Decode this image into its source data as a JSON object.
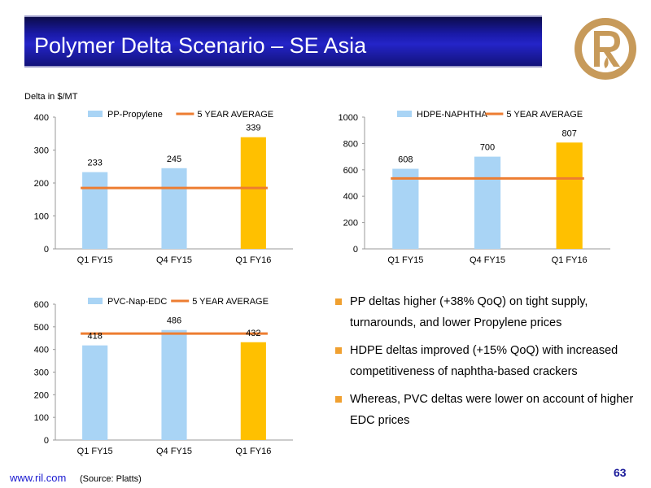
{
  "title": "Polymer Delta Scenario – SE Asia",
  "delta_label": "Delta in $/MT",
  "bullets": [
    "PP deltas higher (+38% QoQ) on tight supply, turnarounds, and lower Propylene prices",
    "HDPE deltas improved (+15% QoQ) with increased competitiveness of naphtha-based crackers",
    "Whereas, PVC deltas were lower on account of higher EDC prices"
  ],
  "footer": {
    "url": "www.ril.com",
    "source": "(Source: Platts)",
    "page": "63"
  },
  "colors": {
    "bar": "#a9d4f5",
    "highlight": "#ffc000",
    "average": "#ed7d31",
    "bullet": "#f0a030"
  },
  "chart_data": [
    {
      "type": "bar",
      "categories": [
        "Q1 FY15",
        "Q4 FY15",
        "Q1 FY16"
      ],
      "series": [
        {
          "name": "PP-Propylene",
          "values": [
            233,
            245,
            339
          ]
        },
        {
          "name": "5 YEAR AVERAGE",
          "type": "line",
          "values": [
            185,
            185,
            185
          ]
        }
      ],
      "highlight_index": 2,
      "ylim": [
        0,
        400
      ],
      "yticks": [
        "0",
        "100",
        "200",
        "300",
        "400"
      ],
      "data_labels": [
        "233",
        "245",
        "339"
      ],
      "legend_position": "top"
    },
    {
      "type": "bar",
      "categories": [
        "Q1 FY15",
        "Q4 FY15",
        "Q1 FY16"
      ],
      "series": [
        {
          "name": "HDPE-NAPHTHA",
          "values": [
            608,
            700,
            807
          ]
        },
        {
          "name": "5 YEAR AVERAGE",
          "type": "line",
          "values": [
            535,
            535,
            535
          ]
        }
      ],
      "highlight_index": 2,
      "ylim": [
        0,
        1000
      ],
      "yticks": [
        "0",
        "200",
        "400",
        "600",
        "800",
        "1000"
      ],
      "data_labels": [
        "608",
        "700",
        "807"
      ],
      "legend_position": "top"
    },
    {
      "type": "bar",
      "categories": [
        "Q1 FY15",
        "Q4 FY15",
        "Q1 FY16"
      ],
      "series": [
        {
          "name": "PVC-Nap-EDC",
          "values": [
            418,
            486,
            432
          ]
        },
        {
          "name": "5 YEAR AVERAGE",
          "type": "line",
          "values": [
            470,
            470,
            470
          ]
        }
      ],
      "highlight_index": 2,
      "ylim": [
        0,
        600
      ],
      "yticks": [
        "0",
        "100",
        "200",
        "300",
        "400",
        "500",
        "600"
      ],
      "data_labels": [
        "418",
        "486",
        "432"
      ],
      "legend_position": "top"
    }
  ]
}
